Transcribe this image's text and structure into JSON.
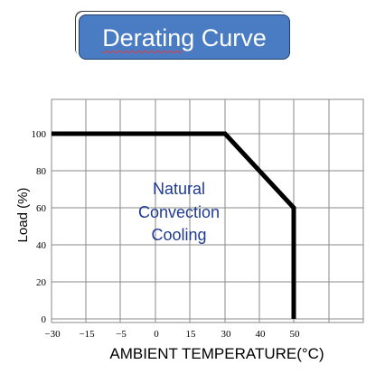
{
  "header": {
    "title_word1": "Derating",
    "title_word2": "Curve"
  },
  "chart_data": {
    "type": "line",
    "title": "Derating Curve",
    "xlabel": "AMBIENT TEMPERATURE(°C)",
    "ylabel": "Load (%)",
    "x_ticks": [
      -30,
      -15,
      -5,
      0,
      15,
      30,
      40,
      50
    ],
    "x_tick_labels": [
      "−30",
      "−15",
      "−5",
      "0",
      "15",
      "30",
      "40",
      "50"
    ],
    "y_ticks": [
      0,
      20,
      40,
      60,
      80,
      100
    ],
    "y_tick_labels": [
      "0",
      "20",
      "40",
      "60",
      "80",
      "100"
    ],
    "ylim": [
      0,
      120
    ],
    "grid": true,
    "series": [
      {
        "points": [
          {
            "x": -30,
            "y": 100
          },
          {
            "x": 30,
            "y": 100
          },
          {
            "x": 50,
            "y": 60
          },
          {
            "x": 50,
            "y": 0
          }
        ]
      }
    ],
    "annotation": {
      "lines": [
        "Natural",
        "Convection",
        "Cooling"
      ],
      "color": "#1f3a93"
    },
    "line_color": "#000000",
    "grid_color": "#8a8a8a"
  }
}
